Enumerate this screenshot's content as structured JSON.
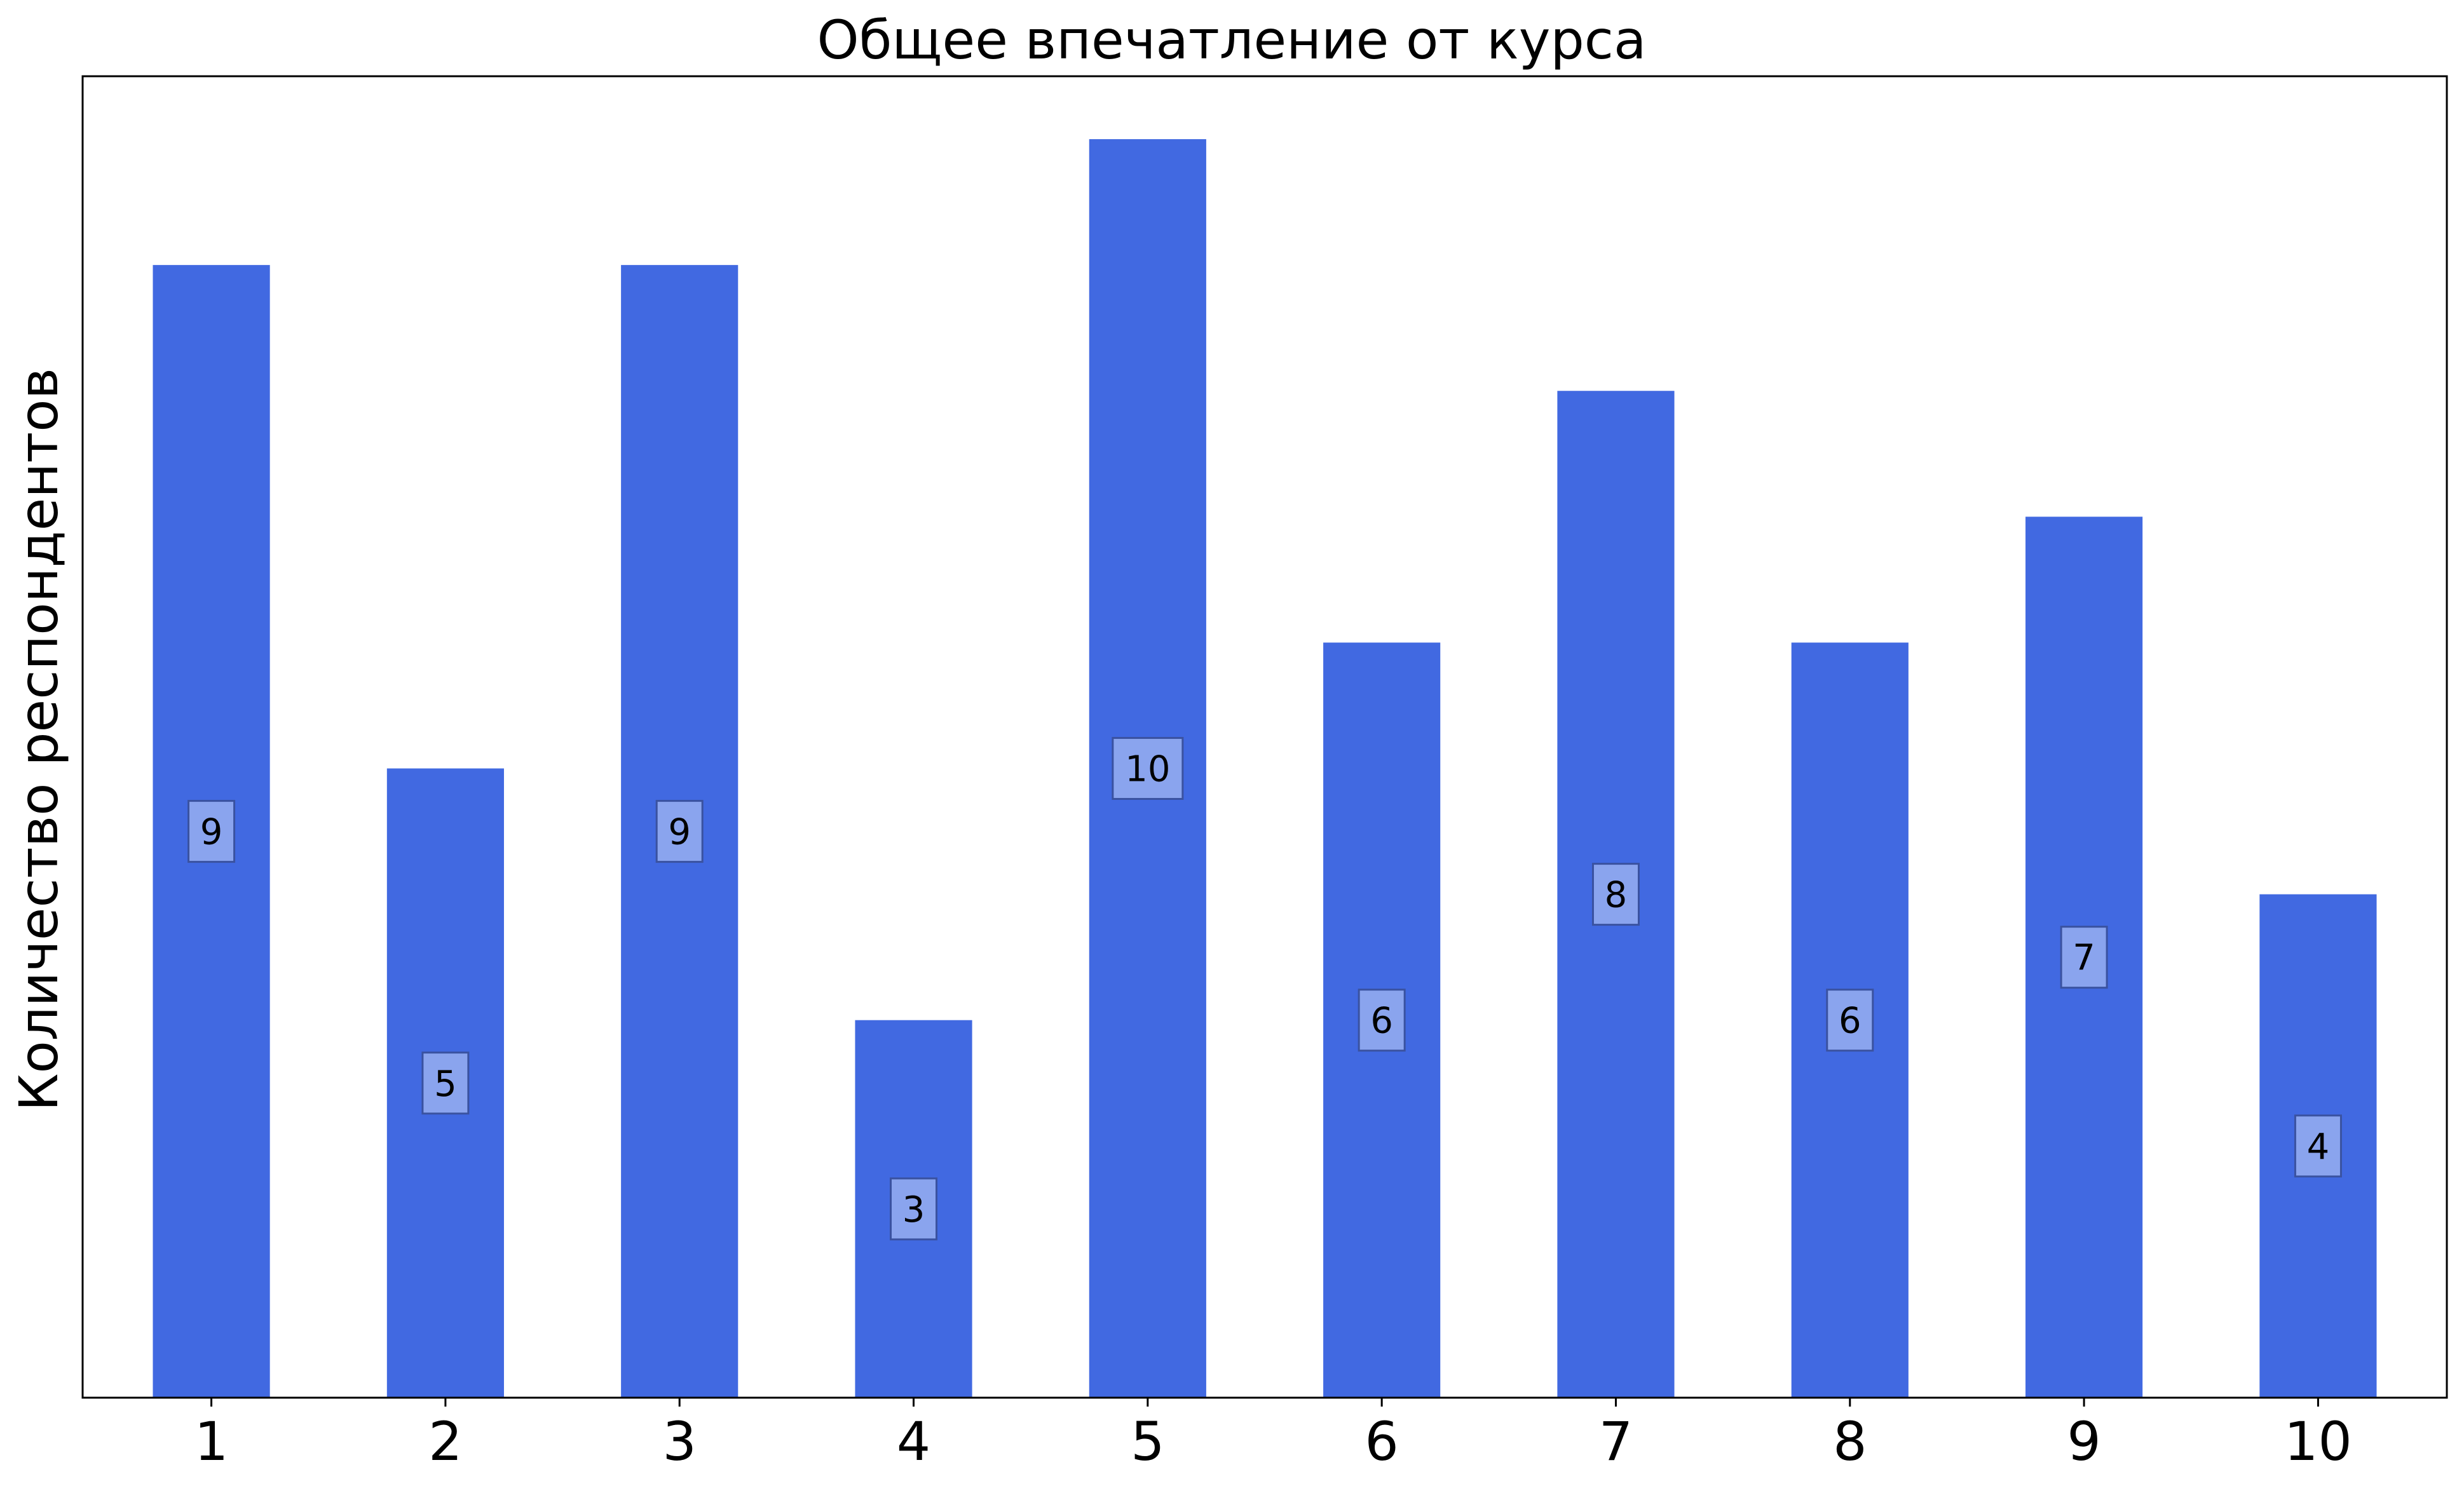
{
  "chart_data": {
    "type": "bar",
    "title": "Общее впечатление от курса",
    "xlabel": "",
    "ylabel": "Количество респондентов",
    "categories": [
      "1",
      "2",
      "3",
      "4",
      "5",
      "6",
      "7",
      "8",
      "9",
      "10"
    ],
    "values": [
      9,
      5,
      9,
      3,
      10,
      6,
      8,
      6,
      7,
      4
    ],
    "data_labels": [
      "9",
      "5",
      "9",
      "3",
      "10",
      "6",
      "8",
      "6",
      "7",
      "4"
    ],
    "ylim": [
      0,
      10.5
    ],
    "y_ticks_shown": false,
    "grid": false,
    "legend": "none",
    "colors": {
      "bar": "#4169e1",
      "label_box_fill": "#8aa4ee",
      "label_box_edge": "#3a52a0",
      "axis": "#000000"
    }
  }
}
